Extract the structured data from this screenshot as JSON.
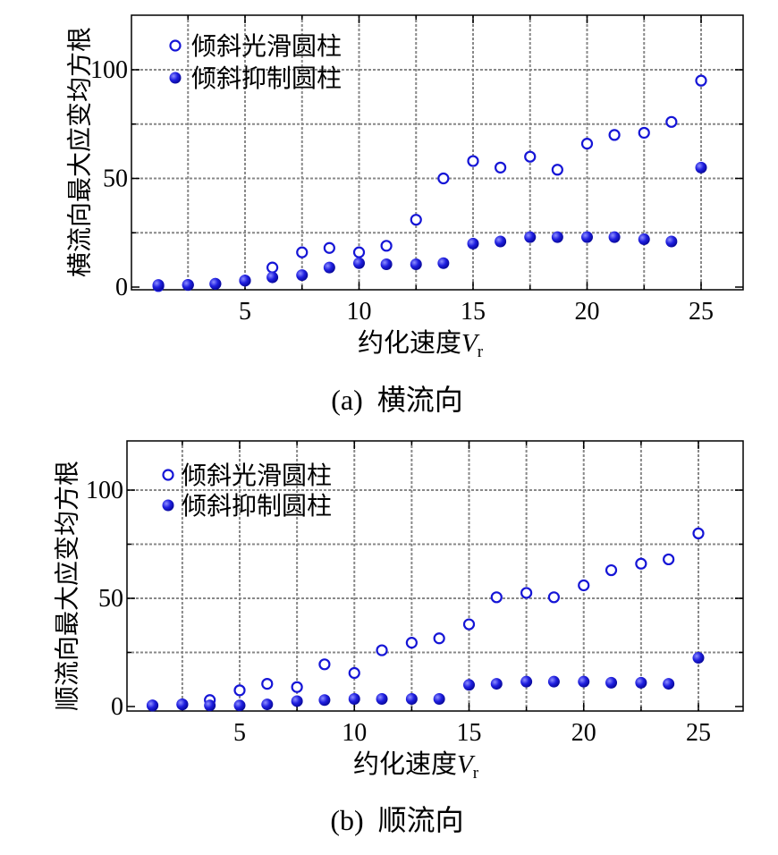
{
  "colors": {
    "marker": "#1515d6",
    "grid": "#888888",
    "axis": "#000000"
  },
  "chart_data": [
    {
      "type": "scatter",
      "caption": "(a)  横流向",
      "xlabel": "约化速度",
      "xlabel_var": "V",
      "xlabel_sub": "r",
      "ylabel": "横流向最大应变均方根",
      "xlim": [
        0,
        27
      ],
      "ylim": [
        0,
        120
      ],
      "xticks": [
        5,
        10,
        15,
        20,
        25
      ],
      "yticks": [
        0,
        50,
        100
      ],
      "grid": true,
      "legend_position": "top-left",
      "series": [
        {
          "name": "倾斜光滑圆柱",
          "marker": "open-circle",
          "x": [
            1.2,
            2.5,
            3.7,
            5.0,
            6.2,
            7.5,
            8.7,
            10.0,
            11.2,
            12.5,
            13.7,
            15.0,
            16.2,
            17.5,
            18.7,
            20.0,
            21.2,
            22.5,
            23.7,
            25.0
          ],
          "y": [
            0.5,
            1,
            1.5,
            3,
            9,
            16,
            18,
            16,
            19,
            31,
            50,
            58,
            55,
            60,
            54,
            66,
            70,
            71,
            76,
            95
          ]
        },
        {
          "name": "倾斜抑制圆柱",
          "marker": "filled-circle",
          "x": [
            1.2,
            2.5,
            3.7,
            5.0,
            6.2,
            7.5,
            8.7,
            10.0,
            11.2,
            12.5,
            13.7,
            15.0,
            16.2,
            17.5,
            18.7,
            20.0,
            21.2,
            22.5,
            23.7,
            25.0
          ],
          "y": [
            1,
            1,
            1.5,
            3,
            4.5,
            5.5,
            9,
            11,
            10.5,
            10.5,
            11,
            20,
            21,
            23,
            23,
            23,
            23,
            22,
            21,
            55
          ]
        }
      ]
    },
    {
      "type": "scatter",
      "caption": "(b)  顺流向",
      "xlabel": "约化速度",
      "xlabel_var": "V",
      "xlabel_sub": "r",
      "ylabel": "顺流向最大应变均方根",
      "xlim": [
        0,
        27
      ],
      "ylim": [
        0,
        120
      ],
      "xticks": [
        5,
        10,
        15,
        20,
        25
      ],
      "yticks": [
        0,
        50,
        100
      ],
      "grid": true,
      "legend_position": "top-left",
      "series": [
        {
          "name": "倾斜光滑圆柱",
          "marker": "open-circle",
          "x": [
            1.2,
            2.5,
            3.7,
            5.0,
            6.2,
            7.5,
            8.7,
            10.0,
            11.2,
            12.5,
            13.7,
            15.0,
            16.2,
            17.5,
            18.7,
            20.0,
            21.2,
            22.5,
            23.7,
            25.0
          ],
          "y": [
            0.5,
            1,
            3,
            7.5,
            10.5,
            9,
            19.5,
            15.5,
            26,
            29.5,
            31.5,
            38,
            50.5,
            52.5,
            50.5,
            56,
            63,
            66,
            68,
            80
          ]
        },
        {
          "name": "倾斜抑制圆柱",
          "marker": "filled-circle",
          "x": [
            1.2,
            2.5,
            3.7,
            5.0,
            6.2,
            7.5,
            8.7,
            10.0,
            11.2,
            12.5,
            13.7,
            15.0,
            16.2,
            17.5,
            18.7,
            20.0,
            21.2,
            22.5,
            23.7,
            25.0
          ],
          "y": [
            0.5,
            1,
            0.5,
            0.5,
            1,
            2.5,
            3,
            3.5,
            3.5,
            3.5,
            3.5,
            10,
            10.5,
            11.5,
            11.5,
            11.5,
            11,
            11,
            10.5,
            22.5
          ]
        }
      ]
    }
  ]
}
